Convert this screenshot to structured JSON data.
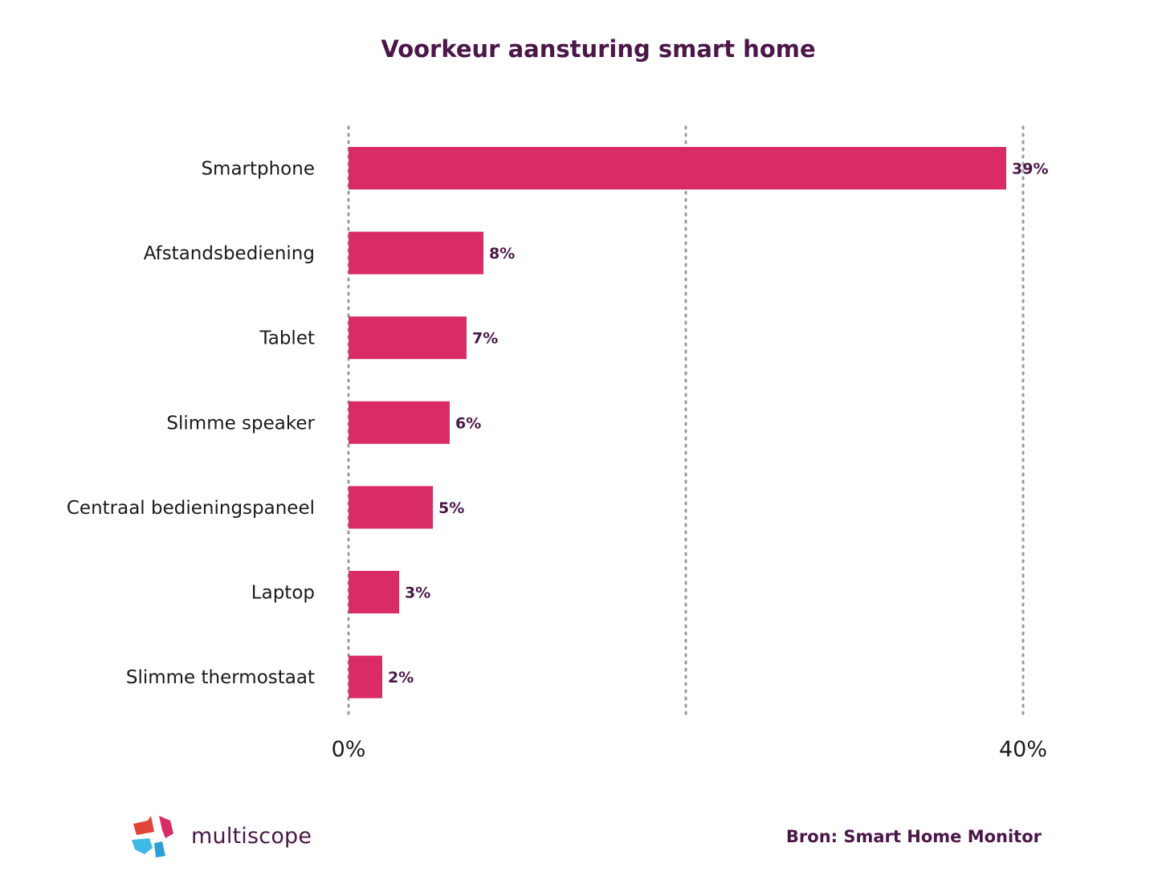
{
  "colors": {
    "bar": "#d92b66",
    "title": "#4a1748",
    "grid": "#9a9a9a",
    "text": "#1a1a1a"
  },
  "chart_data": {
    "type": "bar",
    "orientation": "horizontal",
    "title": "Voorkeur aansturing smart home",
    "categories": [
      "Smartphone",
      "Afstandsbediening",
      "Tablet",
      "Slimme speaker",
      "Centraal bedieningspaneel",
      "Laptop",
      "Slimme thermostaat"
    ],
    "values": [
      39,
      8,
      7,
      6,
      5,
      3,
      2
    ],
    "value_labels": [
      "39%",
      "8%",
      "7%",
      "6%",
      "5%",
      "3%",
      "2%"
    ],
    "xlim": [
      0,
      40
    ],
    "xticks": [
      0,
      20,
      40
    ],
    "xtick_labels": [
      "0%",
      "",
      "40%"
    ],
    "grid": true,
    "xlabel": "",
    "ylabel": ""
  },
  "footer": {
    "source": "Bron: Smart Home Monitor",
    "logo_text": "multiscope"
  }
}
